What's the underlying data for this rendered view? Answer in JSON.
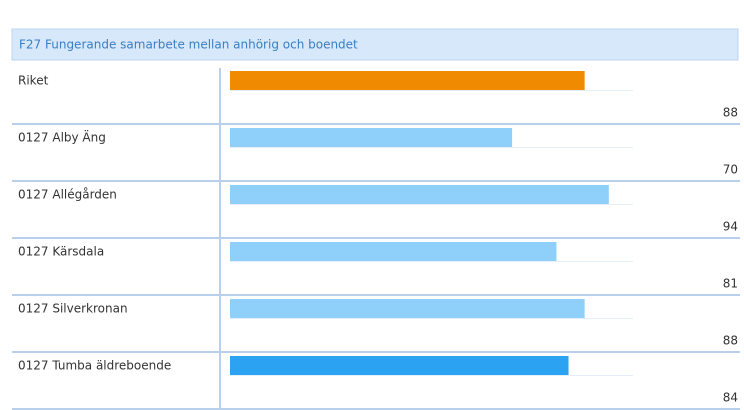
{
  "chart_data": {
    "type": "bar",
    "orientation": "horizontal",
    "title": "F27 Fungerande samarbete mellan anhörig och boendet",
    "categories": [
      "Riket",
      "0127 Alby Äng",
      "0127 Allégården",
      "0127 Kärsdala",
      "0127 Silverkronan",
      "0127 Tumba äldreboende"
    ],
    "values": [
      88,
      70,
      94,
      81,
      88,
      84
    ],
    "colors": [
      "#f08a00",
      "#8fd0fb",
      "#8fd0fb",
      "#8fd0fb",
      "#8fd0fb",
      "#2ba3f2"
    ]
  }
}
